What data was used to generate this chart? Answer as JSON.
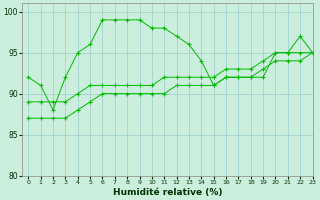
{
  "xlabel": "Humidité relative (%)",
  "xlim": [
    -0.5,
    23
  ],
  "ylim": [
    80,
    101
  ],
  "xticks": [
    0,
    1,
    2,
    3,
    4,
    5,
    6,
    7,
    8,
    9,
    10,
    11,
    12,
    13,
    14,
    15,
    16,
    17,
    18,
    19,
    20,
    21,
    22,
    23
  ],
  "yticks": [
    80,
    85,
    90,
    95,
    100
  ],
  "background_color": "#cceedd",
  "grid_color": "#99cccc",
  "line_color": "#00bb00",
  "line1_x": [
    0,
    1,
    2,
    3,
    4,
    5,
    6,
    7,
    8,
    9,
    10,
    11,
    12,
    13,
    14,
    15,
    16,
    17,
    18,
    19,
    20,
    21,
    22,
    23
  ],
  "line1_y": [
    92,
    91,
    88,
    92,
    95,
    96,
    99,
    99,
    99,
    99,
    98,
    98,
    97,
    96,
    94,
    91,
    92,
    92,
    92,
    92,
    95,
    95,
    97,
    95
  ],
  "line2_x": [
    0,
    1,
    2,
    3,
    4,
    5,
    6,
    7,
    8,
    9,
    10,
    11,
    12,
    13,
    14,
    15,
    16,
    17,
    18,
    19,
    20,
    21,
    22,
    23
  ],
  "line2_y": [
    89,
    89,
    89,
    89,
    90,
    91,
    91,
    91,
    91,
    91,
    91,
    92,
    92,
    92,
    92,
    92,
    93,
    93,
    93,
    94,
    95,
    95,
    95,
    95
  ],
  "line3_x": [
    0,
    1,
    2,
    3,
    4,
    5,
    6,
    7,
    8,
    9,
    10,
    11,
    12,
    13,
    14,
    15,
    16,
    17,
    18,
    19,
    20,
    21,
    22,
    23
  ],
  "line3_y": [
    87,
    87,
    87,
    87,
    88,
    89,
    90,
    90,
    90,
    90,
    90,
    90,
    91,
    91,
    91,
    91,
    92,
    92,
    92,
    93,
    94,
    94,
    94,
    95
  ]
}
